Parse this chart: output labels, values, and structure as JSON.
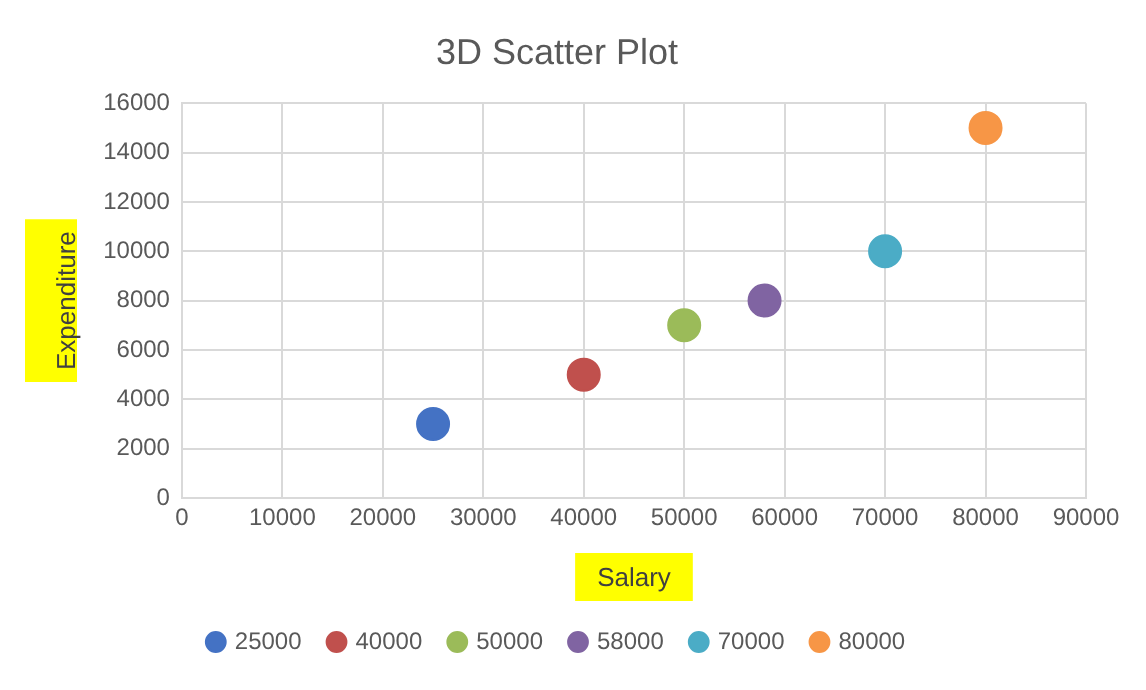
{
  "chart_data": {
    "type": "scatter",
    "title": "3D Scatter Plot",
    "xlabel": "Salary",
    "ylabel": "Expenditure",
    "xlim": [
      0,
      90000
    ],
    "xticks": [
      0,
      10000,
      20000,
      30000,
      40000,
      50000,
      60000,
      70000,
      80000,
      90000
    ],
    "ylim": [
      0,
      16000
    ],
    "yticks": [
      0,
      2000,
      4000,
      6000,
      8000,
      10000,
      12000,
      14000,
      16000
    ],
    "grid": true,
    "legend": "bottom",
    "marker": "circle",
    "series": [
      {
        "name": "25000",
        "color": "#4472c4",
        "x": [
          25000
        ],
        "values": [
          3000
        ]
      },
      {
        "name": "40000",
        "color": "#c0504d",
        "x": [
          40000
        ],
        "values": [
          5000
        ]
      },
      {
        "name": "50000",
        "color": "#9bbb59",
        "x": [
          50000
        ],
        "values": [
          7000
        ]
      },
      {
        "name": "58000",
        "color": "#8064a2",
        "x": [
          58000
        ],
        "values": [
          8000
        ]
      },
      {
        "name": "70000",
        "color": "#4bacc6",
        "x": [
          70000
        ],
        "values": [
          10000
        ]
      },
      {
        "name": "80000",
        "color": "#f79646",
        "x": [
          80000
        ],
        "values": [
          15000
        ]
      }
    ]
  }
}
